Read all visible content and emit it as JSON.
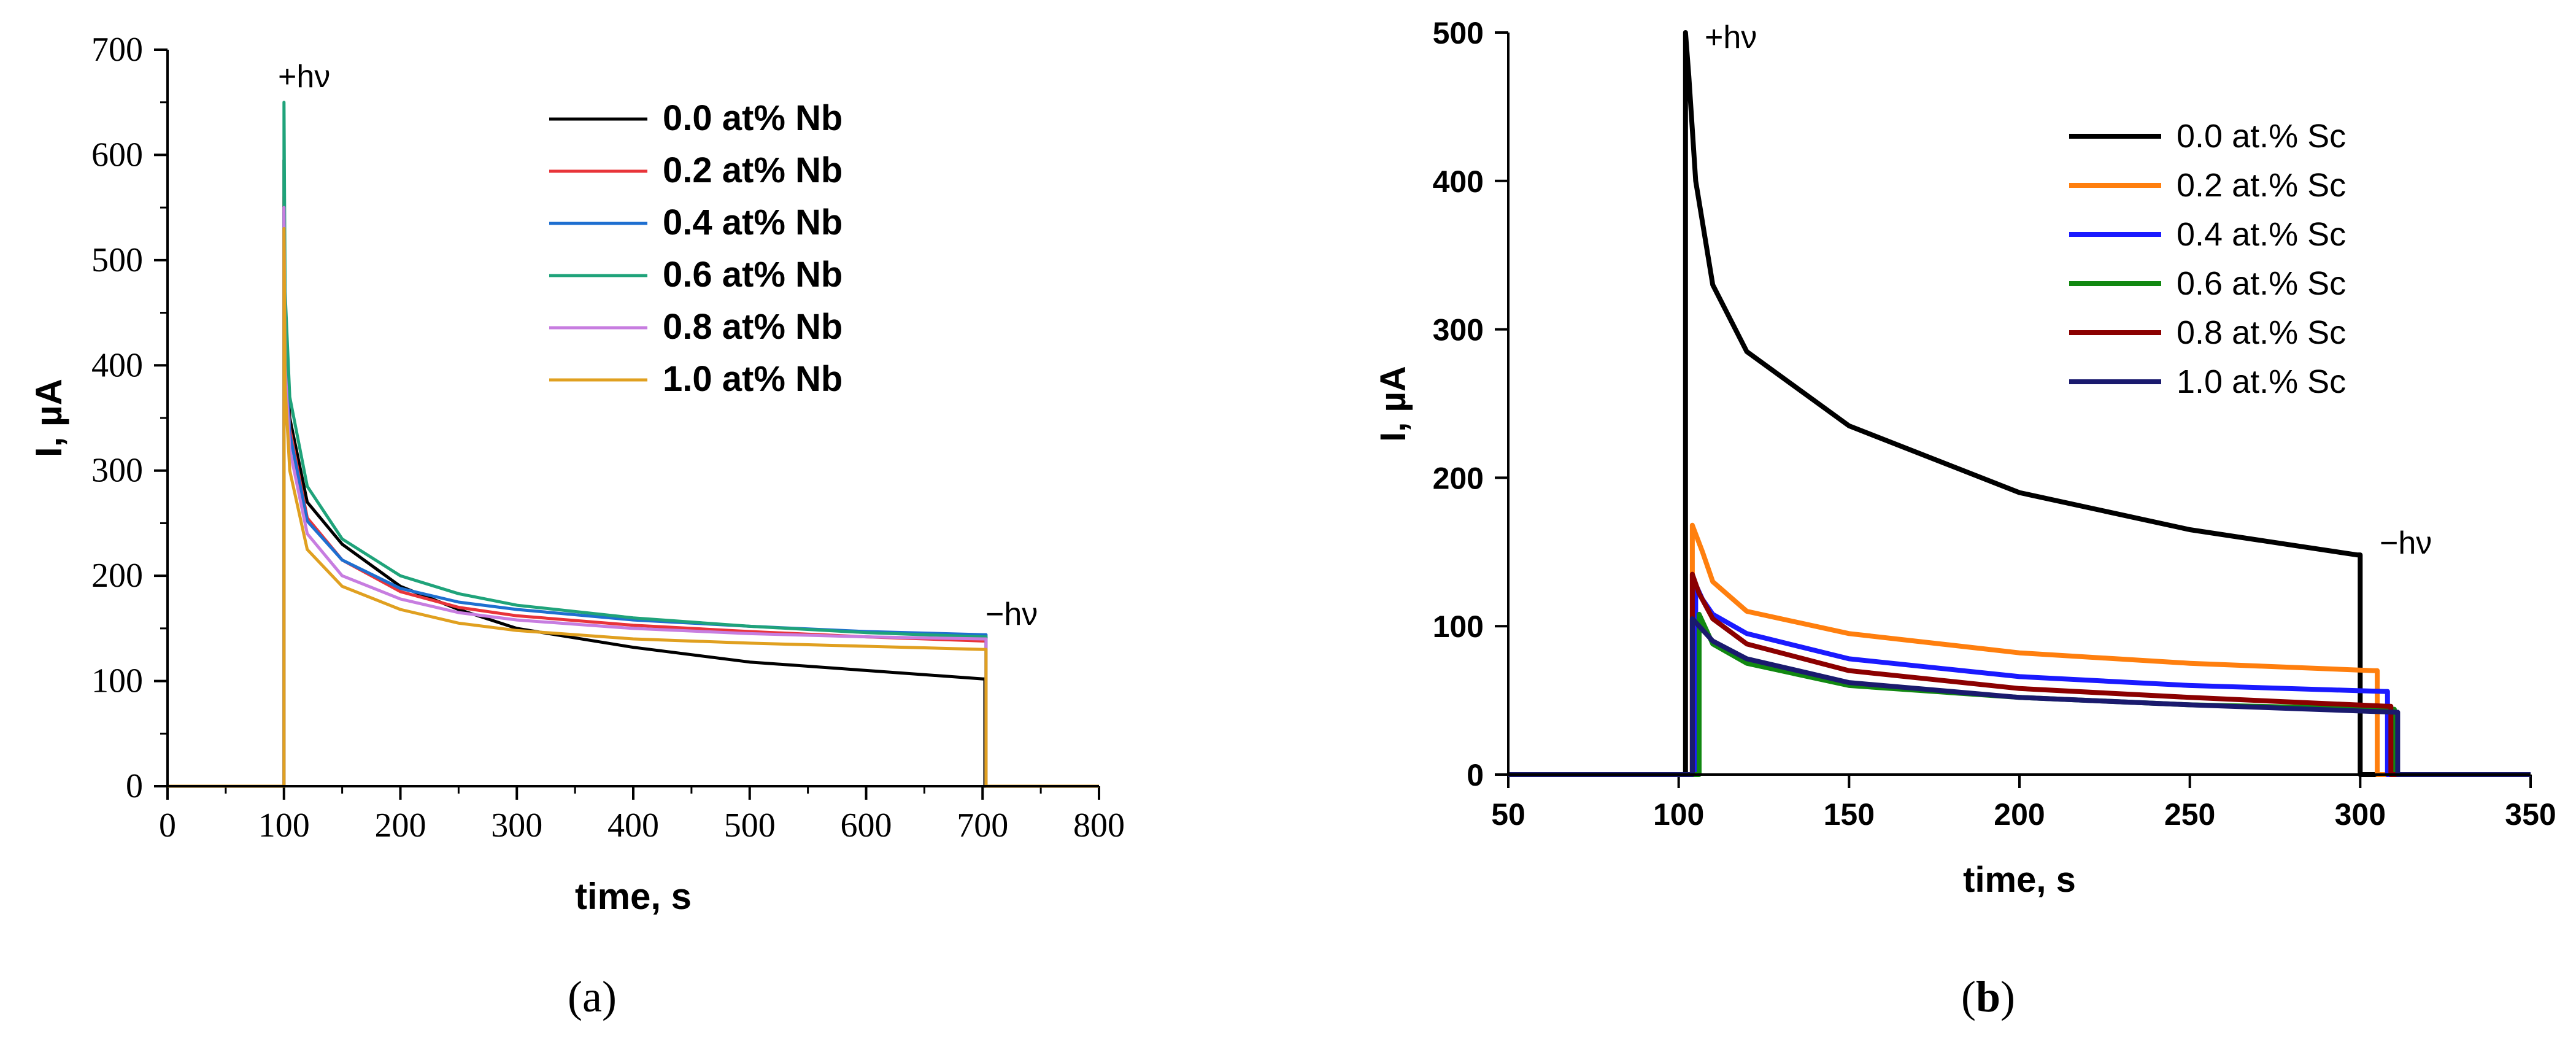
{
  "chart_data": [
    {
      "type": "line",
      "panel": "a",
      "caption_open": "(",
      "caption_letter": "a",
      "caption_close": ")",
      "title": "",
      "xlabel": "time, s",
      "ylabel": "I, µA",
      "xlim": [
        0,
        800
      ],
      "ylim": [
        0,
        700
      ],
      "xticks": [
        0,
        100,
        200,
        300,
        400,
        500,
        600,
        700,
        800
      ],
      "yticks": [
        0,
        100,
        200,
        300,
        400,
        500,
        600,
        700
      ],
      "legend_position": "top-right",
      "annotations": [
        {
          "text": "+hν",
          "x": 100,
          "y": 650
        },
        {
          "text": "−hν",
          "x": 700,
          "y": 155
        }
      ],
      "series": [
        {
          "name": "0.0 at% Nb",
          "color": "#000000",
          "on": 100,
          "off": 702,
          "peak": 595,
          "decay": [
            [
              101,
              440
            ],
            [
              105,
              350
            ],
            [
              120,
              270
            ],
            [
              150,
              230
            ],
            [
              200,
              190
            ],
            [
              250,
              168
            ],
            [
              300,
              150
            ],
            [
              400,
              132
            ],
            [
              500,
              118
            ],
            [
              600,
              110
            ],
            [
              700,
              102
            ]
          ]
        },
        {
          "name": "0.2 at% Nb",
          "color": "#e8343a",
          "on": 100,
          "off": 703,
          "peak": 560,
          "decay": [
            [
              101,
              420
            ],
            [
              105,
              340
            ],
            [
              120,
              255
            ],
            [
              150,
              215
            ],
            [
              200,
              185
            ],
            [
              250,
              170
            ],
            [
              300,
              162
            ],
            [
              400,
              153
            ],
            [
              500,
              147
            ],
            [
              600,
              142
            ],
            [
              700,
              138
            ]
          ]
        },
        {
          "name": "0.4 at% Nb",
          "color": "#1e6fd0",
          "on": 100,
          "off": 703,
          "peak": 545,
          "decay": [
            [
              101,
              420
            ],
            [
              105,
              335
            ],
            [
              120,
              252
            ],
            [
              150,
              215
            ],
            [
              200,
              188
            ],
            [
              250,
              175
            ],
            [
              300,
              168
            ],
            [
              400,
              158
            ],
            [
              500,
              152
            ],
            [
              600,
              147
            ],
            [
              700,
              144
            ]
          ]
        },
        {
          "name": "0.6 at% Nb",
          "color": "#1fa37a",
          "on": 100,
          "off": 703,
          "peak": 650,
          "decay": [
            [
              101,
              470
            ],
            [
              105,
              370
            ],
            [
              120,
              285
            ],
            [
              150,
              235
            ],
            [
              200,
              200
            ],
            [
              250,
              183
            ],
            [
              300,
              172
            ],
            [
              400,
              160
            ],
            [
              500,
              152
            ],
            [
              600,
              146
            ],
            [
              700,
              142
            ]
          ]
        },
        {
          "name": "0.8 at% Nb",
          "color": "#c77de0",
          "on": 100,
          "off": 703,
          "peak": 550,
          "decay": [
            [
              101,
              400
            ],
            [
              105,
              320
            ],
            [
              120,
              240
            ],
            [
              150,
              200
            ],
            [
              200,
              178
            ],
            [
              250,
              165
            ],
            [
              300,
              158
            ],
            [
              400,
              150
            ],
            [
              500,
              145
            ],
            [
              600,
              142
            ],
            [
              700,
              140
            ]
          ]
        },
        {
          "name": "1.0 at% Nb",
          "color": "#e0a020",
          "on": 100,
          "off": 703,
          "peak": 530,
          "decay": [
            [
              101,
              380
            ],
            [
              105,
              300
            ],
            [
              120,
              225
            ],
            [
              150,
              190
            ],
            [
              200,
              168
            ],
            [
              250,
              155
            ],
            [
              300,
              148
            ],
            [
              400,
              140
            ],
            [
              500,
              136
            ],
            [
              600,
              133
            ],
            [
              700,
              130
            ]
          ]
        }
      ]
    },
    {
      "type": "line",
      "panel": "b",
      "caption_open": "(",
      "caption_letter": "b",
      "caption_close": ")",
      "title": "",
      "xlabel": "time, s",
      "ylabel": "I, µA",
      "xlim": [
        50,
        350
      ],
      "ylim": [
        0,
        500
      ],
      "xticks": [
        50,
        100,
        150,
        200,
        250,
        300,
        350
      ],
      "yticks": [
        0,
        100,
        200,
        300,
        400,
        500
      ],
      "legend_position": "top-right",
      "annotations": [
        {
          "text": "+hν",
          "x": 102,
          "y": 500
        },
        {
          "text": "−hν",
          "x": 300,
          "y": 150
        }
      ],
      "series": [
        {
          "name": "0.0 at.% Sc",
          "color": "#000000",
          "on": 102,
          "off": 300,
          "peak": 500,
          "decay": [
            [
              103,
              470
            ],
            [
              105,
              400
            ],
            [
              110,
              330
            ],
            [
              120,
              285
            ],
            [
              150,
              235
            ],
            [
              200,
              190
            ],
            [
              250,
              165
            ],
            [
              299,
              148
            ]
          ]
        },
        {
          "name": "0.2 at.% Sc",
          "color": "#ff7f0e",
          "on": 104,
          "off": 305,
          "peak": 168,
          "decay": [
            [
              107,
              150
            ],
            [
              110,
              130
            ],
            [
              120,
              110
            ],
            [
              150,
              95
            ],
            [
              200,
              82
            ],
            [
              250,
              75
            ],
            [
              304,
              70
            ]
          ]
        },
        {
          "name": "0.4 at.% Sc",
          "color": "#1a1aff",
          "on": 105,
          "off": 308,
          "peak": 128,
          "decay": [
            [
              107,
              118
            ],
            [
              110,
              108
            ],
            [
              120,
              95
            ],
            [
              150,
              78
            ],
            [
              200,
              66
            ],
            [
              250,
              60
            ],
            [
              307,
              56
            ]
          ]
        },
        {
          "name": "0.6 at.% Sc",
          "color": "#118811",
          "on": 106,
          "off": 310,
          "peak": 108,
          "decay": [
            [
              108,
              98
            ],
            [
              110,
              88
            ],
            [
              120,
              75
            ],
            [
              150,
              60
            ],
            [
              200,
              52
            ],
            [
              250,
              47
            ],
            [
              309,
              44
            ]
          ]
        },
        {
          "name": "0.8 at.% Sc",
          "color": "#8b0000",
          "on": 104,
          "off": 309,
          "peak": 135,
          "decay": [
            [
              106,
              122
            ],
            [
              110,
              105
            ],
            [
              120,
              88
            ],
            [
              150,
              70
            ],
            [
              200,
              58
            ],
            [
              250,
              52
            ],
            [
              308,
              46
            ]
          ]
        },
        {
          "name": "1.0 at.% Sc",
          "color": "#1a1a6e",
          "on": 104,
          "off": 311,
          "peak": 105,
          "decay": [
            [
              106,
              100
            ],
            [
              110,
              90
            ],
            [
              120,
              78
            ],
            [
              150,
              62
            ],
            [
              200,
              52
            ],
            [
              250,
              47
            ],
            [
              310,
              42
            ]
          ]
        }
      ]
    }
  ]
}
